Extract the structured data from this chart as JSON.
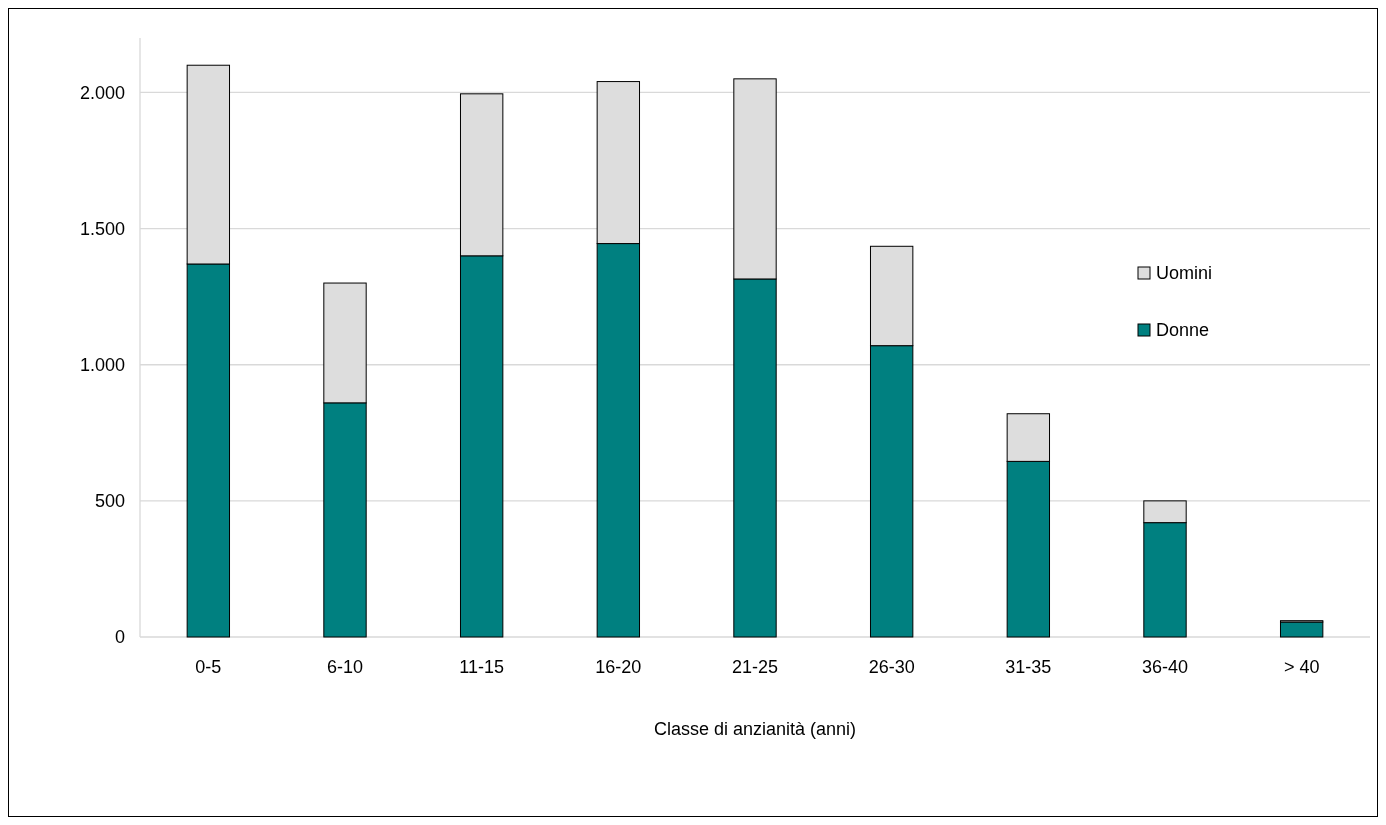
{
  "chart_data": {
    "type": "bar",
    "xlabel": "Classe di anzianità (anni)",
    "categories": [
      "0-5",
      "6-10",
      "11-15",
      "16-20",
      "21-25",
      "26-30",
      "31-35",
      "36-40",
      "> 40"
    ],
    "stacked": true,
    "series": [
      {
        "name": "Donne",
        "color": "#008080",
        "values": [
          1370,
          860,
          1400,
          1445,
          1315,
          1070,
          645,
          420,
          55
        ]
      },
      {
        "name": "Uomini",
        "color": "#dddddd",
        "values": [
          730,
          440,
          595,
          595,
          735,
          365,
          175,
          80,
          5
        ]
      }
    ],
    "ylim": [
      0,
      2200
    ],
    "yticks": [
      0,
      {
        "value": 500,
        "label": "500"
      },
      {
        "value": 1000,
        "label": "1.000"
      },
      {
        "value": 1500,
        "label": "1.500"
      },
      {
        "value": 2000,
        "label": "2.000"
      }
    ],
    "grid": "y",
    "legend": "right"
  }
}
